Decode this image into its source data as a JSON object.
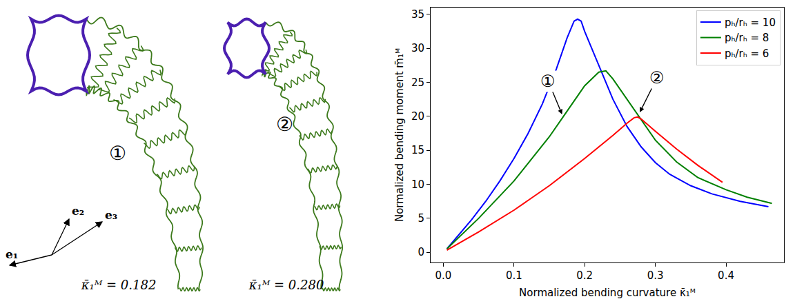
{
  "chart_data": {
    "type": "line",
    "x_label": "Normalized bending curvature κ̄₁ᴹ",
    "y_label": "Normalized bending moment m̄₁ᴹ",
    "xlim": [
      -0.018,
      0.482
    ],
    "ylim": [
      -1.5,
      36
    ],
    "xticks": [
      {
        "value": 0,
        "label": "0.0"
      },
      {
        "value": 0.1,
        "label": "0.1"
      },
      {
        "value": 0.2,
        "label": "0.2"
      },
      {
        "value": 0.3,
        "label": "0.3"
      },
      {
        "value": 0.4,
        "label": "0.4"
      }
    ],
    "yticks": [
      0,
      5,
      10,
      15,
      20,
      25,
      30,
      35
    ],
    "grid": false,
    "legend": "upper right",
    "series": [
      {
        "name": "pₕ/rₕ = 10",
        "color": "#0000ff",
        "x": [
          0.005,
          0.02,
          0.04,
          0.06,
          0.08,
          0.1,
          0.12,
          0.14,
          0.16,
          0.175,
          0.185,
          0.19,
          0.195,
          0.2,
          0.22,
          0.24,
          0.26,
          0.28,
          0.3,
          0.32,
          0.35,
          0.38,
          0.42,
          0.46
        ],
        "values": [
          0.5,
          2.3,
          4.8,
          7.5,
          10.5,
          13.8,
          17.5,
          21.8,
          27,
          31.5,
          34,
          34.3,
          34,
          32.5,
          27.5,
          22.5,
          18.5,
          15.5,
          13.2,
          11.5,
          9.8,
          8.6,
          7.5,
          6.7
        ]
      },
      {
        "name": "pₕ/rₕ = 8",
        "color": "#008000",
        "x": [
          0.005,
          0.05,
          0.1,
          0.15,
          0.17,
          0.2,
          0.22,
          0.23,
          0.24,
          0.26,
          0.28,
          0.3,
          0.33,
          0.36,
          0.4,
          0.43,
          0.465
        ],
        "values": [
          0.5,
          5,
          10.5,
          17,
          20,
          24.5,
          26.5,
          26.7,
          25.5,
          22.5,
          19.5,
          16.5,
          13.3,
          11,
          9.2,
          8.1,
          7.2
        ]
      },
      {
        "name": "pₕ/rₕ = 6",
        "color": "#ff0000",
        "x": [
          0.005,
          0.05,
          0.1,
          0.15,
          0.2,
          0.24,
          0.26,
          0.27,
          0.275,
          0.28,
          0.3,
          0.33,
          0.36,
          0.395
        ],
        "values": [
          0.3,
          3,
          6.2,
          9.8,
          13.8,
          17.2,
          19,
          19.8,
          19.9,
          19.6,
          17.8,
          15.2,
          12.8,
          10.3
        ]
      }
    ],
    "annotations": [
      {
        "text": "①",
        "x": 0.168,
        "y": 20.3
      },
      {
        "text": "②",
        "x": 0.278,
        "y": 20.6
      }
    ]
  },
  "figures": {
    "panels": [
      {
        "label": "①",
        "caption": "κ̄₁ᴹ = 0.182"
      },
      {
        "label": "②",
        "caption": "κ̄₁ᴹ = 0.280"
      }
    ],
    "basis": [
      "e₁",
      "e₂",
      "e₃"
    ]
  }
}
